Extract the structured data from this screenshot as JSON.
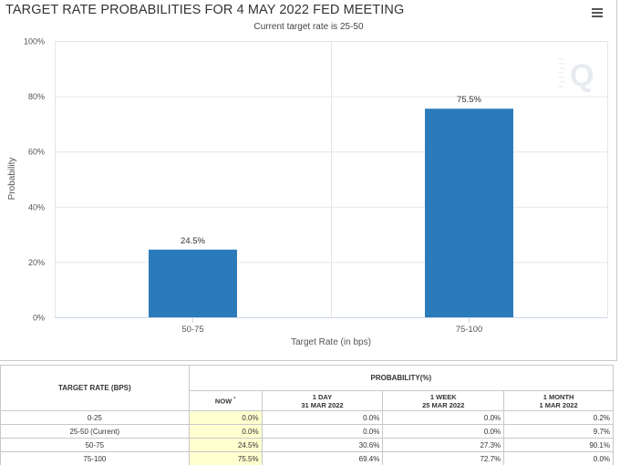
{
  "chart_data": {
    "type": "bar",
    "title": "TARGET RATE PROBABILITIES FOR 4 MAY 2022 FED MEETING",
    "subtitle": "Current target rate is 25-50",
    "xlabel": "Target Rate (in bps)",
    "ylabel": "Probability",
    "categories": [
      "50-75",
      "75-100"
    ],
    "values": [
      24.5,
      75.5
    ],
    "data_labels": [
      "24.5%",
      "75.5%"
    ],
    "ylim": [
      0,
      100
    ],
    "yticks": [
      0,
      20,
      40,
      60,
      80,
      100
    ],
    "ytick_labels": [
      "0%",
      "20%",
      "40%",
      "60%",
      "80%",
      "100%"
    ],
    "bar_color": "#2b7bba",
    "grid": true,
    "legend": "none"
  },
  "menu": {
    "icon": "hamburger-menu-icon"
  },
  "watermark": {
    "icon": "q-logo-icon"
  },
  "table": {
    "target_header": "TARGET RATE (BPS)",
    "prob_header": "PROBABILITY(%)",
    "columns": [
      {
        "label": "NOW",
        "sup": "*",
        "date": ""
      },
      {
        "label": "1 DAY",
        "date": "31 MAR 2022"
      },
      {
        "label": "1 WEEK",
        "date": "25 MAR 2022"
      },
      {
        "label": "1 MONTH",
        "date": "1 MAR 2022"
      }
    ],
    "rows": [
      {
        "rate": "0-25",
        "now": "0.0%",
        "day": "0.0%",
        "week": "0.0%",
        "month": "0.2%"
      },
      {
        "rate": "25-50 (Current)",
        "now": "0.0%",
        "day": "0.0%",
        "week": "0.0%",
        "month": "9.7%"
      },
      {
        "rate": "50-75",
        "now": "24.5%",
        "day": "30.6%",
        "week": "27.3%",
        "month": "90.1%"
      },
      {
        "rate": "75-100",
        "now": "75.5%",
        "day": "69.4%",
        "week": "72.7%",
        "month": "0.0%"
      }
    ],
    "now_highlight_color": "#ffffd0"
  }
}
